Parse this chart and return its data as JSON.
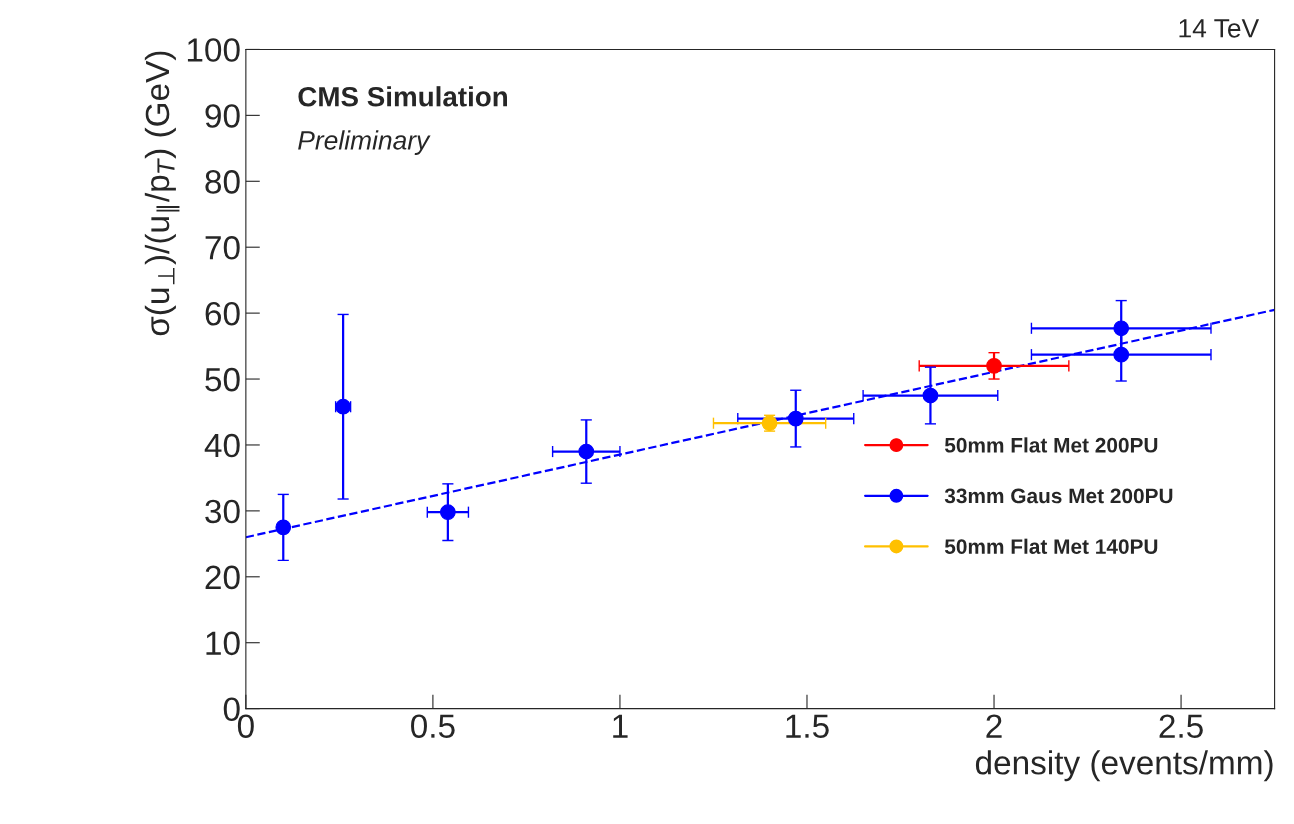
{
  "chart_data": {
    "type": "scatter",
    "xlabel": "density (events/mm)",
    "ylabel": "σ(u$_{⊥}$)/(u$_{∥}$/p$_{T}$) (GeV)",
    "annotations": [
      "CMS Simulation",
      "Preliminary",
      "14 TeV"
    ],
    "xlim": [
      0,
      2.75
    ],
    "xticks": [
      0,
      0.5,
      1,
      1.5,
      2,
      2.5
    ],
    "ylim": [
      0,
      100
    ],
    "yticks": [
      0,
      10,
      20,
      30,
      40,
      50,
      60,
      70,
      80,
      90,
      100
    ],
    "grid": false,
    "legend": "right",
    "marker": "circle",
    "series": [
      {
        "name": "50mm Flat Met 200PU",
        "color": "#ff0000",
        "x": [
          2.0
        ],
        "values": [
          52
        ],
        "errors": [
          2
        ],
        "xerrors": [
          0.2
        ]
      },
      {
        "name": "33mm Gaus Met 200PU",
        "color": "#0000ff",
        "x": [
          0.1,
          0.26,
          0.54,
          0.91,
          1.47,
          1.83,
          2.34,
          2.34
        ],
        "values": [
          27.5,
          45.8,
          29.8,
          39,
          44,
          47.5,
          57.7,
          53.7
        ],
        "errors": [
          5,
          14,
          4.3,
          4.8,
          4.3,
          4.3,
          4.2,
          4
        ],
        "xerrors": [
          null,
          0.02,
          0.055,
          0.09,
          0.155,
          0.18,
          0.24,
          0.24
        ]
      },
      {
        "name": "50mm Flat Met 140PU",
        "color": "#ffc000",
        "x": [
          1.4
        ],
        "values": [
          43.3
        ],
        "errors": [
          1.2
        ],
        "xerrors": [
          0.15
        ]
      },
      {
        "type": "line",
        "color": "#0000ff",
        "line_style": "dashed",
        "marker": "none",
        "x": [
          0,
          2.75
        ],
        "values": [
          26,
          60.5
        ]
      }
    ]
  }
}
